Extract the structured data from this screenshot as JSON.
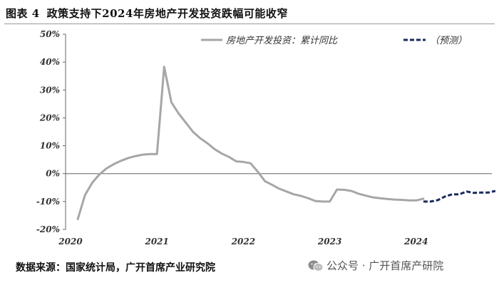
{
  "figure": {
    "label": "图表 4",
    "title": "政策支持下2024年房地产开发投资跌幅可能收窄"
  },
  "source": "数据来源：国家统计局，广开首席产业研究院",
  "watermark": {
    "text": "公众号 · 广开首席产研院",
    "icon": "wechat-icon"
  },
  "chart_data": {
    "type": "line",
    "ylim": [
      -20,
      50
    ],
    "yticks": [
      "50%",
      "40%",
      "30%",
      "20%",
      "10%",
      "0%",
      "-10%",
      "-20%"
    ],
    "ytick_values": [
      50,
      40,
      30,
      20,
      10,
      0,
      -10,
      -20
    ],
    "xticks": [
      "2020",
      "2021",
      "2022",
      "2023",
      "2024"
    ],
    "grid": false,
    "legend": {
      "position": "top-right"
    },
    "colors": {
      "actual": "#a6a6a6",
      "forecast": "#1b2a5e"
    },
    "series": [
      {
        "name": "房地产开发投资：累计同比",
        "style": "solid",
        "points": [
          [
            "2020-02",
            -16.3
          ],
          [
            "2020-03",
            -7.7
          ],
          [
            "2020-04",
            -3.3
          ],
          [
            "2020-05",
            -0.3
          ],
          [
            "2020-06",
            1.9
          ],
          [
            "2020-07",
            3.4
          ],
          [
            "2020-08",
            4.6
          ],
          [
            "2020-09",
            5.6
          ],
          [
            "2020-10",
            6.3
          ],
          [
            "2020-11",
            6.8
          ],
          [
            "2020-12",
            7.0
          ],
          [
            "2021-01",
            7.0
          ],
          [
            "2021-02",
            38.3
          ],
          [
            "2021-03",
            25.6
          ],
          [
            "2021-04",
            21.6
          ],
          [
            "2021-05",
            18.3
          ],
          [
            "2021-06",
            15.0
          ],
          [
            "2021-07",
            12.7
          ],
          [
            "2021-08",
            10.9
          ],
          [
            "2021-09",
            8.8
          ],
          [
            "2021-10",
            7.2
          ],
          [
            "2021-11",
            6.0
          ],
          [
            "2021-12",
            4.4
          ],
          [
            "2022-01",
            4.2
          ],
          [
            "2022-02",
            3.7
          ],
          [
            "2022-03",
            0.7
          ],
          [
            "2022-04",
            -2.7
          ],
          [
            "2022-05",
            -4.0
          ],
          [
            "2022-06",
            -5.4
          ],
          [
            "2022-07",
            -6.4
          ],
          [
            "2022-08",
            -7.4
          ],
          [
            "2022-09",
            -8.0
          ],
          [
            "2022-10",
            -8.8
          ],
          [
            "2022-11",
            -9.8
          ],
          [
            "2022-12",
            -10.0
          ],
          [
            "2023-01",
            -10.0
          ],
          [
            "2023-02",
            -5.7
          ],
          [
            "2023-03",
            -5.8
          ],
          [
            "2023-04",
            -6.2
          ],
          [
            "2023-05",
            -7.2
          ],
          [
            "2023-06",
            -7.9
          ],
          [
            "2023-07",
            -8.5
          ],
          [
            "2023-08",
            -8.8
          ],
          [
            "2023-09",
            -9.1
          ],
          [
            "2023-10",
            -9.3
          ],
          [
            "2023-11",
            -9.4
          ],
          [
            "2023-12",
            -9.6
          ],
          [
            "2024-01",
            -9.6
          ],
          [
            "2024-02",
            -9.0
          ]
        ]
      },
      {
        "name": "（预测）",
        "style": "dashed",
        "points": [
          [
            "2024-02",
            -10.0
          ],
          [
            "2024-03",
            -10.0
          ],
          [
            "2024-04",
            -9.5
          ],
          [
            "2024-05",
            -8.2
          ],
          [
            "2024-06",
            -7.4
          ],
          [
            "2024-07",
            -7.4
          ],
          [
            "2024-08",
            -6.4
          ],
          [
            "2024-09",
            -6.9
          ],
          [
            "2024-10",
            -6.8
          ],
          [
            "2024-11",
            -6.8
          ],
          [
            "2024-12",
            -6.2
          ]
        ]
      }
    ]
  }
}
